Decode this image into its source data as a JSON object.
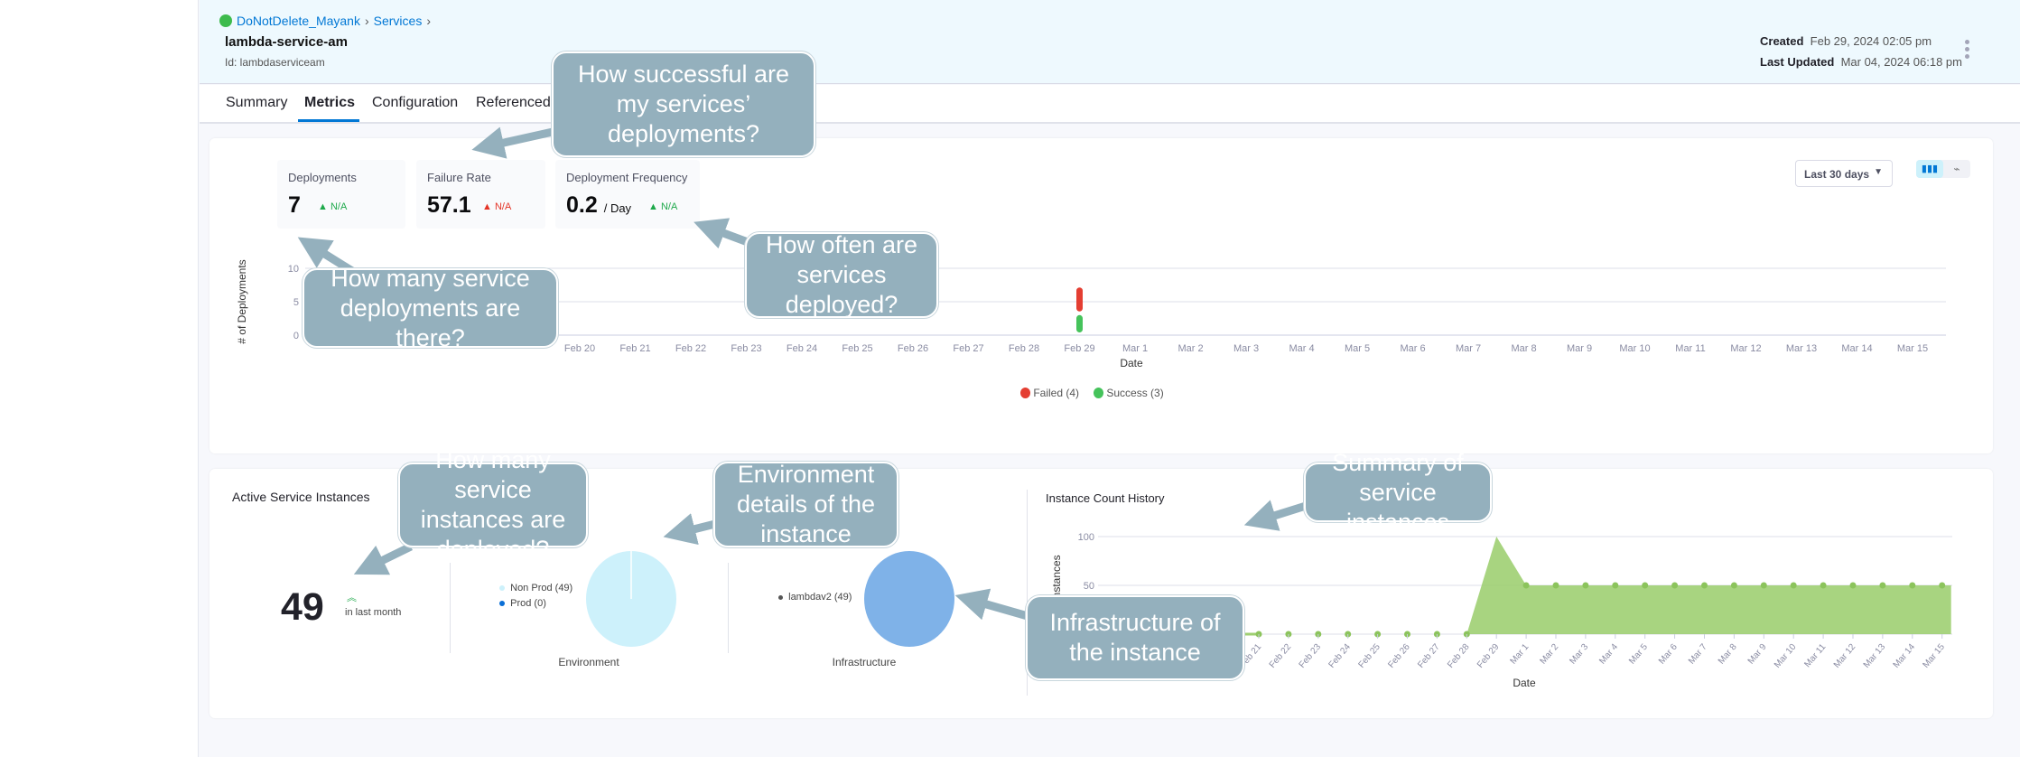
{
  "breadcrumb": {
    "project": "DoNotDelete_Mayank",
    "section": "Services"
  },
  "service": {
    "name": "lambda-service-am",
    "id": "Id: lambdaserviceam"
  },
  "meta": {
    "created_label": "Created",
    "created_value": "Feb 29, 2024 02:05 pm",
    "updated_label": "Last Updated",
    "updated_value": "Mar 04, 2024 06:18 pm"
  },
  "tabs": [
    {
      "label": "Summary"
    },
    {
      "label": "Metrics",
      "active": true
    },
    {
      "label": "Configuration"
    },
    {
      "label": "Referenced"
    }
  ],
  "stats": [
    {
      "label": "Deployments",
      "value": "7",
      "unit": "",
      "delta": "N/A",
      "delta_color": "#1fa94b"
    },
    {
      "label": "Failure Rate",
      "value": "57.1",
      "unit": "",
      "delta": "N/A",
      "delta_color": "#e43326"
    },
    {
      "label": "Deployment Frequency",
      "value": "0.2",
      "unit": "/ Day",
      "delta": "N/A",
      "delta_color": "#1fa94b"
    }
  ],
  "range_select": {
    "value": "Last 30 days"
  },
  "view_toggle": {
    "selected": "bar-chart-icon",
    "other": "line-chart-icon"
  },
  "colors": {
    "failed": "#e43e32",
    "success": "#45c35b",
    "accent": "#0278d5",
    "callout": "#94b0bd",
    "area": "#9fcf72"
  },
  "chart_data": [
    {
      "type": "bar",
      "stacked": true,
      "ylabel": "# of Deployments",
      "xlabel": "Date",
      "yticks": [
        0,
        5,
        10
      ],
      "ylim": [
        0,
        10
      ],
      "grid": true,
      "legend_placement": "bottom",
      "categories": [
        "Feb 20",
        "Feb 21",
        "Feb 22",
        "Feb 23",
        "Feb 24",
        "Feb 25",
        "Feb 26",
        "Feb 27",
        "Feb 28",
        "Feb 29",
        "Mar 1",
        "Mar 2",
        "Mar 3",
        "Mar 4",
        "Mar 5",
        "Mar 6",
        "Mar 7",
        "Mar 8",
        "Mar 9",
        "Mar 10",
        "Mar 11",
        "Mar 12",
        "Mar 13",
        "Mar 14",
        "Mar 15"
      ],
      "series": [
        {
          "name": "Success (3)",
          "values": [
            0,
            0,
            0,
            0,
            0,
            0,
            0,
            0,
            0,
            3,
            0,
            0,
            0,
            0,
            0,
            0,
            0,
            0,
            0,
            0,
            0,
            0,
            0,
            0,
            0
          ]
        },
        {
          "name": "Failed (4)",
          "values": [
            0,
            0,
            0,
            0,
            0,
            0,
            0,
            0,
            0,
            4,
            0,
            0,
            0,
            0,
            0,
            0,
            0,
            0,
            0,
            0,
            0,
            0,
            0,
            0,
            0
          ]
        }
      ]
    },
    {
      "type": "pie",
      "title": "Environment",
      "slices": [
        {
          "name": "Non Prod (49)",
          "value": 49,
          "color": "#cdf1fb"
        },
        {
          "name": "Prod (0)",
          "value": 0,
          "color": "#0b6fd6"
        }
      ]
    },
    {
      "type": "pie",
      "title": "Infrastructure",
      "slices": [
        {
          "name": "lambdav2 (49)",
          "value": 49,
          "color": "#7fb2e8"
        }
      ]
    },
    {
      "type": "area",
      "title": "Instance Count History",
      "ylabel": "Instances",
      "xlabel": "Date",
      "yticks": [
        50,
        100
      ],
      "ylim": [
        0,
        100
      ],
      "grid": true,
      "categories": [
        "Feb 21",
        "Feb 22",
        "Feb 23",
        "Feb 24",
        "Feb 25",
        "Feb 26",
        "Feb 27",
        "Feb 28",
        "Feb 29",
        "Mar 1",
        "Mar 2",
        "Mar 3",
        "Mar 4",
        "Mar 5",
        "Mar 6",
        "Mar 7",
        "Mar 8",
        "Mar 9",
        "Mar 10",
        "Mar 11",
        "Mar 12",
        "Mar 13",
        "Mar 14",
        "Mar 15"
      ],
      "values": [
        0,
        0,
        0,
        0,
        0,
        0,
        0,
        0,
        100,
        50,
        50,
        50,
        50,
        50,
        50,
        50,
        50,
        50,
        50,
        50,
        50,
        50,
        50,
        50
      ]
    }
  ],
  "active_instances": {
    "title": "Active Service Instances",
    "count": "49",
    "caption": "in last month"
  },
  "callouts": [
    "How successful are my services’ deployments?",
    "How many service deployments are there?",
    "How often are services deployed?",
    "How many service instances are deployed?",
    "Environment details of the instance",
    "Summary of service instances",
    "Infrastructure of the instance"
  ]
}
